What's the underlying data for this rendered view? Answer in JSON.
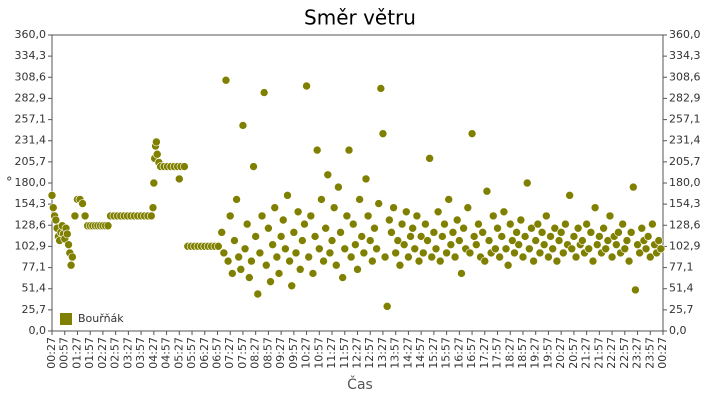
{
  "chart_data": {
    "type": "scatter",
    "title": "Směr větru",
    "x_label": "Čas",
    "y_label": "°",
    "xlim": [
      0,
      1440
    ],
    "xticks": [
      {
        "value": 0,
        "label": "00:27"
      },
      {
        "value": 30,
        "label": "00:57"
      },
      {
        "value": 60,
        "label": "01:27"
      },
      {
        "value": 90,
        "label": "01:57"
      },
      {
        "value": 120,
        "label": "02:27"
      },
      {
        "value": 150,
        "label": "02:57"
      },
      {
        "value": 180,
        "label": "03:27"
      },
      {
        "value": 210,
        "label": "03:57"
      },
      {
        "value": 240,
        "label": "04:27"
      },
      {
        "value": 270,
        "label": "04:57"
      },
      {
        "value": 300,
        "label": "05:27"
      },
      {
        "value": 330,
        "label": "05:57"
      },
      {
        "value": 360,
        "label": "06:27"
      },
      {
        "value": 390,
        "label": "06:57"
      },
      {
        "value": 420,
        "label": "07:27"
      },
      {
        "value": 450,
        "label": "07:57"
      },
      {
        "value": 480,
        "label": "08:27"
      },
      {
        "value": 510,
        "label": "08:57"
      },
      {
        "value": 540,
        "label": "09:27"
      },
      {
        "value": 570,
        "label": "09:57"
      },
      {
        "value": 600,
        "label": "10:27"
      },
      {
        "value": 630,
        "label": "10:57"
      },
      {
        "value": 660,
        "label": "11:27"
      },
      {
        "value": 690,
        "label": "11:57"
      },
      {
        "value": 720,
        "label": "12:27"
      },
      {
        "value": 750,
        "label": "12:57"
      },
      {
        "value": 780,
        "label": "13:27"
      },
      {
        "value": 810,
        "label": "13:57"
      },
      {
        "value": 840,
        "label": "14:27"
      },
      {
        "value": 870,
        "label": "14:57"
      },
      {
        "value": 900,
        "label": "15:27"
      },
      {
        "value": 930,
        "label": "15:57"
      },
      {
        "value": 960,
        "label": "16:27"
      },
      {
        "value": 990,
        "label": "16:57"
      },
      {
        "value": 1020,
        "label": "17:27"
      },
      {
        "value": 1050,
        "label": "17:57"
      },
      {
        "value": 1080,
        "label": "18:27"
      },
      {
        "value": 1110,
        "label": "18:57"
      },
      {
        "value": 1140,
        "label": "19:27"
      },
      {
        "value": 1170,
        "label": "19:57"
      },
      {
        "value": 1200,
        "label": "20:27"
      },
      {
        "value": 1230,
        "label": "20:57"
      },
      {
        "value": 1260,
        "label": "21:27"
      },
      {
        "value": 1290,
        "label": "21:57"
      },
      {
        "value": 1320,
        "label": "22:27"
      },
      {
        "value": 1350,
        "label": "22:57"
      },
      {
        "value": 1380,
        "label": "23:27"
      },
      {
        "value": 1410,
        "label": "23:57"
      },
      {
        "value": 1440,
        "label": "00:27"
      }
    ],
    "ylim": [
      0,
      360
    ],
    "yticks": [
      {
        "value": 0,
        "label": "0,0"
      },
      {
        "value": 25.7,
        "label": "25,7"
      },
      {
        "value": 51.4,
        "label": "51,4"
      },
      {
        "value": 77.1,
        "label": "77,1"
      },
      {
        "value": 102.9,
        "label": "102,9"
      },
      {
        "value": 128.6,
        "label": "128,6"
      },
      {
        "value": 154.3,
        "label": "154,3"
      },
      {
        "value": 180,
        "label": "180,0"
      },
      {
        "value": 205.7,
        "label": "205,7"
      },
      {
        "value": 231.4,
        "label": "231,4"
      },
      {
        "value": 257.1,
        "label": "257,1"
      },
      {
        "value": 282.9,
        "label": "282,9"
      },
      {
        "value": 308.6,
        "label": "308,6"
      },
      {
        "value": 334.3,
        "label": "334,3"
      },
      {
        "value": 360,
        "label": "360,0"
      }
    ],
    "legend": "bottom-left",
    "series": [
      {
        "name": "Bouřňák",
        "color": "#808000",
        "x": [
          0,
          3,
          6,
          9,
          12,
          15,
          18,
          21,
          24,
          27,
          30,
          33,
          36,
          39,
          42,
          45,
          48,
          54,
          60,
          66,
          72,
          78,
          84,
          90,
          96,
          102,
          108,
          114,
          120,
          126,
          132,
          138,
          146,
          154,
          162,
          170,
          178,
          186,
          194,
          202,
          210,
          218,
          226,
          234,
          238,
          240,
          242,
          244,
          246,
          248,
          252,
          256,
          264,
          272,
          280,
          288,
          296,
          300,
          304,
          312,
          320,
          328,
          336,
          344,
          352,
          360,
          368,
          376,
          384,
          392,
          400,
          405,
          410,
          415,
          420,
          425,
          430,
          435,
          440,
          445,
          450,
          455,
          460,
          465,
          470,
          475,
          480,
          485,
          490,
          495,
          500,
          505,
          510,
          515,
          520,
          525,
          530,
          535,
          540,
          545,
          550,
          555,
          560,
          565,
          570,
          575,
          580,
          585,
          590,
          595,
          600,
          605,
          610,
          615,
          620,
          625,
          630,
          635,
          640,
          645,
          650,
          655,
          660,
          665,
          670,
          675,
          680,
          685,
          690,
          695,
          700,
          705,
          710,
          715,
          720,
          725,
          730,
          735,
          740,
          745,
          750,
          755,
          760,
          765,
          770,
          775,
          780,
          785,
          790,
          795,
          800,
          805,
          810,
          815,
          820,
          825,
          830,
          835,
          840,
          845,
          850,
          855,
          860,
          865,
          870,
          875,
          880,
          885,
          890,
          895,
          900,
          905,
          910,
          915,
          920,
          925,
          930,
          935,
          940,
          945,
          950,
          955,
          960,
          965,
          970,
          975,
          980,
          985,
          990,
          995,
          1000,
          1005,
          1010,
          1015,
          1020,
          1025,
          1030,
          1035,
          1040,
          1045,
          1050,
          1055,
          1060,
          1065,
          1070,
          1075,
          1080,
          1085,
          1090,
          1095,
          1100,
          1105,
          1110,
          1115,
          1120,
          1125,
          1130,
          1135,
          1140,
          1145,
          1150,
          1155,
          1160,
          1165,
          1170,
          1175,
          1180,
          1185,
          1190,
          1195,
          1200,
          1205,
          1210,
          1215,
          1220,
          1225,
          1230,
          1235,
          1240,
          1245,
          1250,
          1255,
          1260,
          1265,
          1270,
          1275,
          1280,
          1285,
          1290,
          1295,
          1300,
          1305,
          1310,
          1315,
          1320,
          1325,
          1330,
          1335,
          1340,
          1345,
          1350,
          1355,
          1360,
          1365,
          1370,
          1375,
          1380,
          1385,
          1390,
          1395,
          1400,
          1405,
          1410,
          1415,
          1420,
          1425,
          1430,
          1435
        ],
        "values": [
          165,
          150,
          140,
          135,
          125,
          115,
          110,
          120,
          128,
          118,
          112,
          125,
          118,
          105,
          95,
          80,
          90,
          140,
          160,
          160,
          155,
          140,
          128,
          128,
          128,
          128,
          128,
          128,
          128,
          128,
          128,
          140,
          140,
          140,
          140,
          140,
          140,
          140,
          140,
          140,
          140,
          140,
          140,
          140,
          150,
          180,
          210,
          225,
          230,
          215,
          205,
          200,
          200,
          200,
          200,
          200,
          200,
          185,
          200,
          200,
          103,
          103,
          103,
          103,
          103,
          103,
          103,
          103,
          103,
          103,
          120,
          95,
          305,
          85,
          140,
          70,
          110,
          160,
          90,
          75,
          250,
          100,
          130,
          65,
          85,
          200,
          115,
          45,
          95,
          140,
          290,
          80,
          125,
          60,
          105,
          150,
          90,
          70,
          115,
          135,
          100,
          165,
          85,
          55,
          120,
          95,
          145,
          75,
          110,
          130,
          298,
          90,
          140,
          70,
          115,
          220,
          100,
          160,
          85,
          125,
          190,
          95,
          110,
          150,
          80,
          175,
          120,
          65,
          100,
          140,
          220,
          90,
          130,
          105,
          75,
          160,
          115,
          95,
          185,
          140,
          110,
          85,
          125,
          100,
          155,
          295,
          240,
          90,
          30,
          135,
          120,
          150,
          95,
          110,
          80,
          130,
          105,
          145,
          90,
          115,
          125,
          100,
          140,
          85,
          115,
          95,
          130,
          110,
          210,
          90,
          120,
          100,
          145,
          85,
          115,
          130,
          95,
          160,
          105,
          120,
          90,
          135,
          110,
          70,
          125,
          100,
          150,
          95,
          240,
          115,
          105,
          130,
          90,
          120,
          85,
          170,
          110,
          95,
          140,
          100,
          125,
          90,
          115,
          145,
          100,
          80,
          130,
          110,
          95,
          120,
          105,
          135,
          90,
          115,
          180,
          100,
          125,
          85,
          110,
          130,
          95,
          120,
          105,
          140,
          90,
          115,
          100,
          125,
          85,
          110,
          120,
          95,
          130,
          105,
          165,
          100,
          115,
          90,
          125,
          105,
          110,
          95,
          130,
          100,
          120,
          85,
          150,
          105,
          115,
          95,
          125,
          100,
          110,
          140,
          90,
          115,
          105,
          120,
          95,
          130,
          100,
          110,
          85,
          120,
          175,
          50,
          105,
          95,
          125,
          110,
          100,
          115,
          90,
          130,
          105,
          95,
          110,
          100
        ]
      }
    ]
  }
}
